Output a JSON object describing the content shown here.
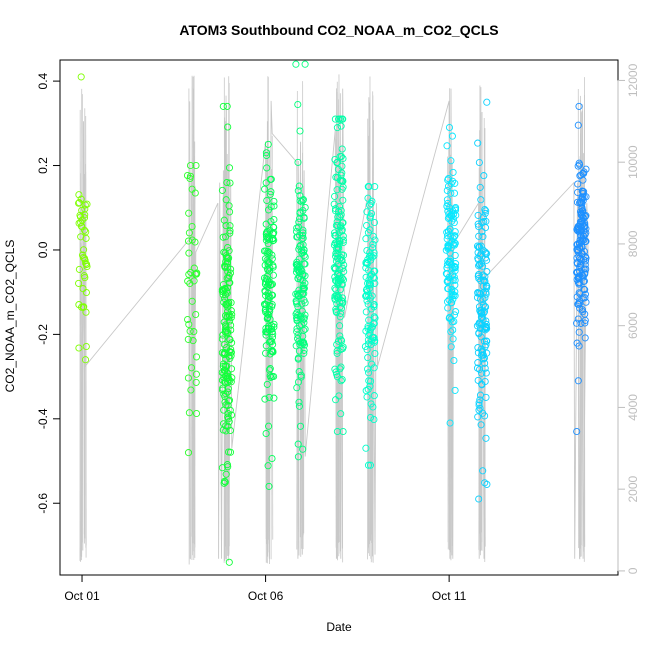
{
  "chart_data": {
    "type": "scatter",
    "title": "ATOM3 Southbound CO2_NOAA_m_CO2_QCLS",
    "xlabel": "Date",
    "ylabel": "CO2_NOAA_m_CO2_QCLS",
    "x_unit": "day of October (fractional)",
    "xlim": [
      0.4,
      15.6
    ],
    "ylim": [
      -0.77,
      0.45
    ],
    "y2lim": [
      -100,
      12500
    ],
    "grid": false,
    "x_ticks": [
      {
        "value": 1,
        "label": "Oct 01"
      },
      {
        "value": 6,
        "label": "Oct 06"
      },
      {
        "value": 11,
        "label": "Oct 11"
      }
    ],
    "y_ticks": [
      {
        "value": 0.4,
        "label": "0.4"
      },
      {
        "value": 0.2,
        "label": "0.2"
      },
      {
        "value": 0.0,
        "label": "0.0"
      },
      {
        "value": -0.2,
        "label": "-0.2"
      },
      {
        "value": -0.4,
        "label": "-0.4"
      },
      {
        "value": -0.6,
        "label": "-0.6"
      }
    ],
    "y2_ticks": [
      {
        "value": 0,
        "label": "0"
      },
      {
        "value": 2000,
        "label": "2000"
      },
      {
        "value": 4000,
        "label": "4000"
      },
      {
        "value": 6000,
        "label": "6000"
      },
      {
        "value": 8000,
        "label": "8000"
      },
      {
        "value": 10000,
        "label": "10000"
      },
      {
        "value": 12000,
        "label": "12000"
      }
    ],
    "secondary_series_color": "#c8c8c8",
    "point_color_scale": [
      "#7fff00",
      "#00ff40",
      "#00ffff",
      "#1e90ff"
    ],
    "flight_clusters": [
      {
        "x": 1.03,
        "ymin": -0.26,
        "ymax": 0.41,
        "n": 45,
        "center": -0.02,
        "spread": 0.11
      },
      {
        "x": 4.0,
        "ymin": -0.48,
        "ymax": 0.2,
        "n": 40,
        "center": -0.1,
        "spread": 0.15
      },
      {
        "x": 4.95,
        "ymin": -0.74,
        "ymax": 0.34,
        "n": 160,
        "center": -0.17,
        "spread": 0.17
      },
      {
        "x": 6.1,
        "ymin": -0.56,
        "ymax": 0.25,
        "n": 140,
        "center": -0.07,
        "spread": 0.14
      },
      {
        "x": 6.95,
        "ymin": -0.49,
        "ymax": 0.44,
        "n": 140,
        "center": -0.08,
        "spread": 0.15
      },
      {
        "x": 8.0,
        "ymin": -0.43,
        "ymax": 0.31,
        "n": 150,
        "center": -0.02,
        "spread": 0.14
      },
      {
        "x": 8.85,
        "ymin": -0.51,
        "ymax": 0.15,
        "n": 110,
        "center": -0.12,
        "spread": 0.14
      },
      {
        "x": 11.05,
        "ymin": -0.41,
        "ymax": 0.29,
        "n": 120,
        "center": 0.0,
        "spread": 0.11
      },
      {
        "x": 11.9,
        "ymin": -0.59,
        "ymax": 0.35,
        "n": 140,
        "center": -0.12,
        "spread": 0.15
      },
      {
        "x": 14.6,
        "ymin": -0.43,
        "ymax": 0.34,
        "n": 160,
        "center": 0.01,
        "spread": 0.1
      }
    ],
    "altitude_path": [
      [
        1.0,
        8500
      ],
      [
        1.02,
        500
      ],
      [
        1.04,
        11000
      ],
      [
        1.06,
        6000
      ],
      [
        1.08,
        5000
      ],
      [
        4.0,
        8200
      ],
      [
        4.02,
        1500
      ],
      [
        4.04,
        11800
      ],
      [
        4.05,
        2200
      ],
      [
        4.1,
        7800
      ],
      [
        4.7,
        9000
      ],
      [
        4.72,
        300
      ],
      [
        4.75,
        9500
      ],
      [
        4.8,
        300
      ],
      [
        4.85,
        9800
      ],
      [
        4.9,
        300
      ],
      [
        4.95,
        9800
      ],
      [
        5.0,
        400
      ],
      [
        5.05,
        9500
      ],
      [
        5.08,
        3000
      ],
      [
        6.0,
        10500
      ],
      [
        6.02,
        200
      ],
      [
        6.05,
        11000
      ],
      [
        6.1,
        300
      ],
      [
        6.15,
        11500
      ],
      [
        6.18,
        10700
      ],
      [
        6.85,
        10000
      ],
      [
        6.88,
        300
      ],
      [
        6.95,
        10500
      ],
      [
        7.0,
        400
      ],
      [
        7.05,
        9800
      ],
      [
        7.08,
        2800
      ],
      [
        7.9,
        10800
      ],
      [
        7.93,
        300
      ],
      [
        8.0,
        11000
      ],
      [
        8.05,
        300
      ],
      [
        8.1,
        11800
      ],
      [
        8.15,
        6200
      ],
      [
        8.85,
        9500
      ],
      [
        8.87,
        300
      ],
      [
        8.92,
        9800
      ],
      [
        8.98,
        400
      ],
      [
        9.02,
        9000
      ],
      [
        9.05,
        5000
      ],
      [
        11.0,
        11500
      ],
      [
        11.02,
        300
      ],
      [
        11.05,
        11800
      ],
      [
        11.1,
        300
      ],
      [
        11.12,
        8000
      ],
      [
        11.8,
        9000
      ],
      [
        11.82,
        300
      ],
      [
        11.9,
        9500
      ],
      [
        11.95,
        300
      ],
      [
        12.0,
        7200
      ],
      [
        14.4,
        9500
      ],
      [
        14.42,
        300
      ],
      [
        14.5,
        9500
      ],
      [
        14.55,
        300
      ],
      [
        14.6,
        9800
      ],
      [
        14.65,
        300
      ],
      [
        14.75,
        9000
      ],
      [
        14.8,
        7300
      ]
    ]
  }
}
